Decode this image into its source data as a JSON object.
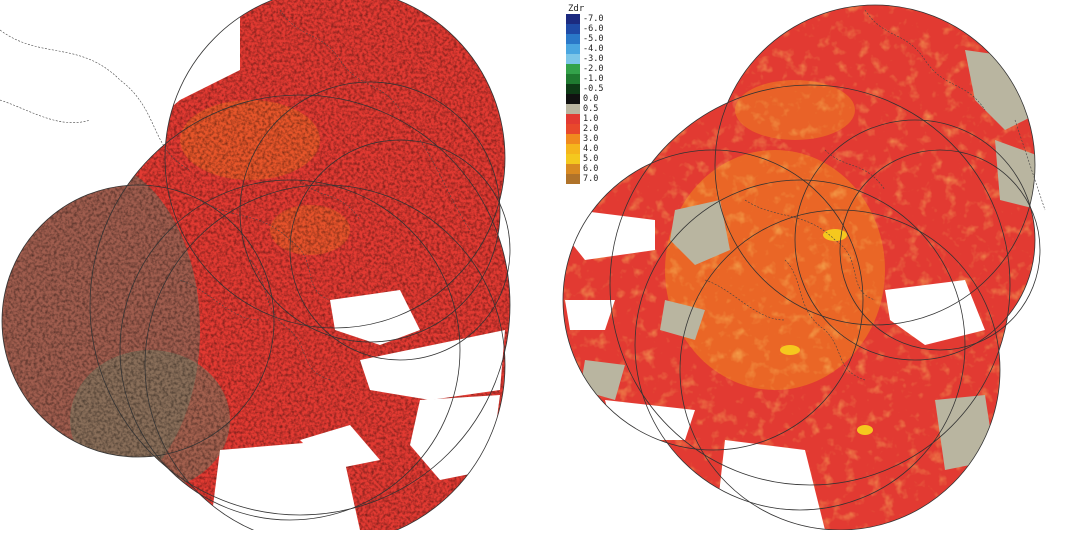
{
  "legend": {
    "title": "Zdr",
    "entries": [
      {
        "label": "-7.0",
        "color": "#1c2a80"
      },
      {
        "label": "-6.0",
        "color": "#1f4aa6"
      },
      {
        "label": "-5.0",
        "color": "#2a78c8"
      },
      {
        "label": "-4.0",
        "color": "#4aa6e0"
      },
      {
        "label": "-3.0",
        "color": "#7cc6e8"
      },
      {
        "label": "-2.0",
        "color": "#33a24a"
      },
      {
        "label": "-1.0",
        "color": "#1f7a30"
      },
      {
        "label": "-0.5",
        "color": "#0e3a16"
      },
      {
        "label": "0.0",
        "color": "#111111"
      },
      {
        "label": "0.5",
        "color": "#b9b5a0"
      },
      {
        "label": "1.0",
        "color": "#e23a32"
      },
      {
        "label": "2.0",
        "color": "#e8482c"
      },
      {
        "label": "3.0",
        "color": "#f08a1e"
      },
      {
        "label": "4.0",
        "color": "#f5b51c"
      },
      {
        "label": "5.0",
        "color": "#f4c81e"
      },
      {
        "label": "6.0",
        "color": "#d88a22"
      },
      {
        "label": "7.0",
        "color": "#b0732a"
      }
    ]
  },
  "colors": {
    "background": "#ffffff",
    "range_ring": "#333333",
    "boundary": "#444444",
    "echo_red": "#e23a32",
    "echo_orange": "#f08a1e",
    "echo_yellow": "#f5c81e",
    "echo_gray": "#b9b5a0",
    "echo_green": "#1f5a2a",
    "echo_dark": "#111111"
  }
}
